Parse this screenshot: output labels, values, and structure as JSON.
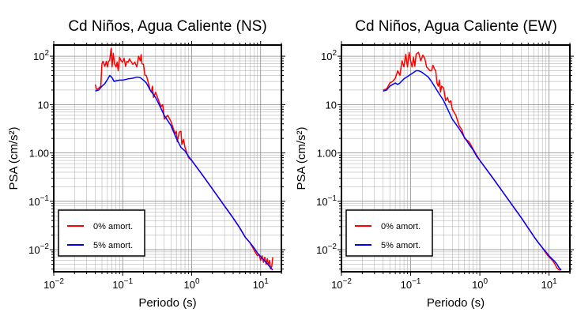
{
  "chart_data": [
    {
      "type": "line",
      "title": "Cd Niños, Agua Caliente (NS)",
      "xlabel": "Periodo (s)",
      "ylabel": "PSA (cm/s²)",
      "xscale": "log",
      "yscale": "log",
      "xlim": [
        0.01,
        20
      ],
      "ylim": [
        0.0035,
        170
      ],
      "grid": true,
      "legend_position": "bottom-left",
      "xticks": [
        {
          "base": "10",
          "exp": "−2"
        },
        {
          "base": "10",
          "exp": "−1"
        },
        {
          "base": "10",
          "exp": "0"
        },
        {
          "base": "10",
          "exp": "1"
        }
      ],
      "yticks": [
        {
          "label": "10",
          "exp": "−2"
        },
        {
          "label": "10",
          "exp": "−1"
        },
        {
          "label": "10",
          "exp": "0"
        },
        {
          "label": "10"
        },
        {
          "label": "10",
          "exp": "2"
        }
      ],
      "series": [
        {
          "name": "0% amort.",
          "color": "#ff0000",
          "points": [
            [
              0.04,
              26
            ],
            [
              0.042,
              20
            ],
            [
              0.045,
              22
            ],
            [
              0.048,
              24
            ],
            [
              0.05,
              70
            ],
            [
              0.052,
              78
            ],
            [
              0.055,
              62
            ],
            [
              0.058,
              78
            ],
            [
              0.06,
              60
            ],
            [
              0.062,
              75
            ],
            [
              0.065,
              85
            ],
            [
              0.068,
              145
            ],
            [
              0.07,
              60
            ],
            [
              0.073,
              115
            ],
            [
              0.076,
              70
            ],
            [
              0.08,
              60
            ],
            [
              0.083,
              75
            ],
            [
              0.086,
              50
            ],
            [
              0.09,
              95
            ],
            [
              0.095,
              80
            ],
            [
              0.1,
              75
            ],
            [
              0.105,
              90
            ],
            [
              0.11,
              62
            ],
            [
              0.115,
              78
            ],
            [
              0.12,
              75
            ],
            [
              0.125,
              88
            ],
            [
              0.13,
              80
            ],
            [
              0.14,
              68
            ],
            [
              0.15,
              75
            ],
            [
              0.16,
              60
            ],
            [
              0.17,
              100
            ],
            [
              0.18,
              80
            ],
            [
              0.185,
              108
            ],
            [
              0.19,
              70
            ],
            [
              0.2,
              68
            ],
            [
              0.21,
              40
            ],
            [
              0.22,
              40
            ],
            [
              0.23,
              32
            ],
            [
              0.25,
              20
            ],
            [
              0.26,
              18
            ],
            [
              0.27,
              24
            ],
            [
              0.28,
              14
            ],
            [
              0.3,
              18
            ],
            [
              0.32,
              14
            ],
            [
              0.34,
              11
            ],
            [
              0.36,
              9
            ],
            [
              0.38,
              10
            ],
            [
              0.4,
              5
            ],
            [
              0.45,
              6
            ],
            [
              0.5,
              4.5
            ],
            [
              0.55,
              3
            ],
            [
              0.58,
              2.5
            ],
            [
              0.6,
              2.8
            ],
            [
              0.62,
              1.7
            ],
            [
              0.66,
              2.7
            ],
            [
              0.7,
              2.8
            ],
            [
              0.72,
              1.5
            ],
            [
              0.76,
              1.9
            ],
            [
              0.8,
              1.3
            ],
            [
              0.9,
              0.8
            ],
            [
              1.0,
              0.7
            ],
            [
              1.5,
              0.32
            ],
            [
              2,
              0.18
            ],
            [
              3,
              0.08
            ],
            [
              4,
              0.045
            ],
            [
              5,
              0.028
            ],
            [
              6,
              0.018
            ],
            [
              7,
              0.014
            ],
            [
              8,
              0.01
            ],
            [
              8.5,
              0.0085
            ],
            [
              9,
              0.0075
            ],
            [
              9.5,
              0.008
            ],
            [
              10,
              0.006
            ],
            [
              10.5,
              0.0075
            ],
            [
              11,
              0.0055
            ],
            [
              11.5,
              0.007
            ],
            [
              12,
              0.005
            ],
            [
              12.5,
              0.0065
            ],
            [
              13,
              0.0048
            ],
            [
              13.5,
              0.006
            ],
            [
              14,
              0.004
            ],
            [
              14.5,
              0.0045
            ],
            [
              15,
              0.007
            ]
          ]
        },
        {
          "name": "5% amort.",
          "color": "#0000ff",
          "points": [
            [
              0.04,
              19
            ],
            [
              0.045,
              20
            ],
            [
              0.05,
              24
            ],
            [
              0.055,
              27
            ],
            [
              0.06,
              33
            ],
            [
              0.065,
              40
            ],
            [
              0.07,
              36
            ],
            [
              0.075,
              30
            ],
            [
              0.08,
              31
            ],
            [
              0.09,
              32
            ],
            [
              0.1,
              32
            ],
            [
              0.12,
              34
            ],
            [
              0.14,
              35
            ],
            [
              0.16,
              37
            ],
            [
              0.18,
              36
            ],
            [
              0.2,
              32
            ],
            [
              0.22,
              28
            ],
            [
              0.25,
              20
            ],
            [
              0.3,
              14
            ],
            [
              0.35,
              9
            ],
            [
              0.4,
              6
            ],
            [
              0.5,
              3.7
            ],
            [
              0.6,
              2
            ],
            [
              0.7,
              1.3
            ],
            [
              0.8,
              1.1
            ],
            [
              0.9,
              0.85
            ],
            [
              1.0,
              0.7
            ],
            [
              1.5,
              0.32
            ],
            [
              2,
              0.18
            ],
            [
              3,
              0.08
            ],
            [
              4,
              0.045
            ],
            [
              5,
              0.028
            ],
            [
              6,
              0.018
            ],
            [
              7,
              0.014
            ],
            [
              8,
              0.011
            ],
            [
              9,
              0.0085
            ],
            [
              10,
              0.0072
            ],
            [
              11,
              0.0062
            ],
            [
              12,
              0.0055
            ],
            [
              13,
              0.0048
            ],
            [
              14,
              0.0042
            ],
            [
              15,
              0.0038
            ]
          ]
        }
      ]
    },
    {
      "type": "line",
      "title": "Cd Niños, Agua Caliente (EW)",
      "xlabel": "Periodo (s)",
      "ylabel": "PSA (cm/s²)",
      "xscale": "log",
      "yscale": "log",
      "xlim": [
        0.01,
        20
      ],
      "ylim": [
        0.0035,
        170
      ],
      "grid": true,
      "legend_position": "bottom-left",
      "xticks": [
        {
          "base": "10",
          "exp": "−2"
        },
        {
          "base": "10",
          "exp": "−1"
        },
        {
          "base": "10",
          "exp": "0"
        },
        {
          "base": "10",
          "exp": "1"
        }
      ],
      "yticks": [
        {
          "label": "10",
          "exp": "−2"
        },
        {
          "label": "10",
          "exp": "−1"
        },
        {
          "label": "10",
          "exp": "0"
        },
        {
          "label": "10"
        },
        {
          "label": "10",
          "exp": "2"
        }
      ],
      "series": [
        {
          "name": "0% amort.",
          "color": "#ff0000",
          "points": [
            [
              0.04,
              20
            ],
            [
              0.045,
              21
            ],
            [
              0.05,
              28
            ],
            [
              0.055,
              30
            ],
            [
              0.06,
              35
            ],
            [
              0.065,
              50
            ],
            [
              0.07,
              40
            ],
            [
              0.075,
              80
            ],
            [
              0.08,
              60
            ],
            [
              0.085,
              110
            ],
            [
              0.09,
              60
            ],
            [
              0.095,
              120
            ],
            [
              0.1,
              80
            ],
            [
              0.105,
              60
            ],
            [
              0.11,
              95
            ],
            [
              0.115,
              62
            ],
            [
              0.12,
              110
            ],
            [
              0.13,
              120
            ],
            [
              0.14,
              80
            ],
            [
              0.15,
              105
            ],
            [
              0.16,
              90
            ],
            [
              0.17,
              60
            ],
            [
              0.18,
              55
            ],
            [
              0.19,
              50
            ],
            [
              0.2,
              50
            ],
            [
              0.21,
              65
            ],
            [
              0.22,
              55
            ],
            [
              0.23,
              50
            ],
            [
              0.24,
              28
            ],
            [
              0.25,
              24
            ],
            [
              0.26,
              32
            ],
            [
              0.27,
              18
            ],
            [
              0.28,
              24
            ],
            [
              0.3,
              22
            ],
            [
              0.32,
              12
            ],
            [
              0.34,
              14
            ],
            [
              0.36,
              11
            ],
            [
              0.38,
              12
            ],
            [
              0.4,
              8
            ],
            [
              0.45,
              6
            ],
            [
              0.5,
              3.7
            ],
            [
              0.55,
              3
            ],
            [
              0.6,
              2
            ],
            [
              0.7,
              1.7
            ],
            [
              0.8,
              1.2
            ],
            [
              0.9,
              0.9
            ],
            [
              1.0,
              0.7
            ],
            [
              1.5,
              0.32
            ],
            [
              2,
              0.18
            ],
            [
              3,
              0.08
            ],
            [
              4,
              0.045
            ],
            [
              5,
              0.028
            ],
            [
              6,
              0.019
            ],
            [
              7,
              0.014
            ],
            [
              8,
              0.011
            ],
            [
              9,
              0.0085
            ],
            [
              10,
              0.007
            ],
            [
              11,
              0.0062
            ],
            [
              12,
              0.0052
            ],
            [
              13,
              0.0042
            ],
            [
              14,
              0.0038
            ],
            [
              15,
              0.0038
            ]
          ]
        },
        {
          "name": "5% amort.",
          "color": "#0000ff",
          "points": [
            [
              0.04,
              19
            ],
            [
              0.045,
              20
            ],
            [
              0.05,
              24
            ],
            [
              0.055,
              26
            ],
            [
              0.06,
              28
            ],
            [
              0.065,
              26
            ],
            [
              0.07,
              28
            ],
            [
              0.08,
              34
            ],
            [
              0.09,
              38
            ],
            [
              0.1,
              42
            ],
            [
              0.11,
              46
            ],
            [
              0.12,
              50
            ],
            [
              0.13,
              50
            ],
            [
              0.14,
              48
            ],
            [
              0.15,
              45
            ],
            [
              0.16,
              42
            ],
            [
              0.18,
              37
            ],
            [
              0.2,
              30
            ],
            [
              0.25,
              18
            ],
            [
              0.3,
              12
            ],
            [
              0.35,
              7.5
            ],
            [
              0.4,
              5
            ],
            [
              0.5,
              3.2
            ],
            [
              0.6,
              2.1
            ],
            [
              0.7,
              1.5
            ],
            [
              0.8,
              1.15
            ],
            [
              0.9,
              0.85
            ],
            [
              1.0,
              0.7
            ],
            [
              1.5,
              0.32
            ],
            [
              2,
              0.18
            ],
            [
              3,
              0.08
            ],
            [
              4,
              0.045
            ],
            [
              5,
              0.028
            ],
            [
              6,
              0.019
            ],
            [
              7,
              0.014
            ],
            [
              8,
              0.011
            ],
            [
              9,
              0.009
            ],
            [
              10,
              0.0075
            ],
            [
              11,
              0.0065
            ],
            [
              12,
              0.0058
            ],
            [
              13,
              0.005
            ],
            [
              14,
              0.0042
            ],
            [
              15,
              0.0038
            ]
          ]
        }
      ]
    }
  ]
}
